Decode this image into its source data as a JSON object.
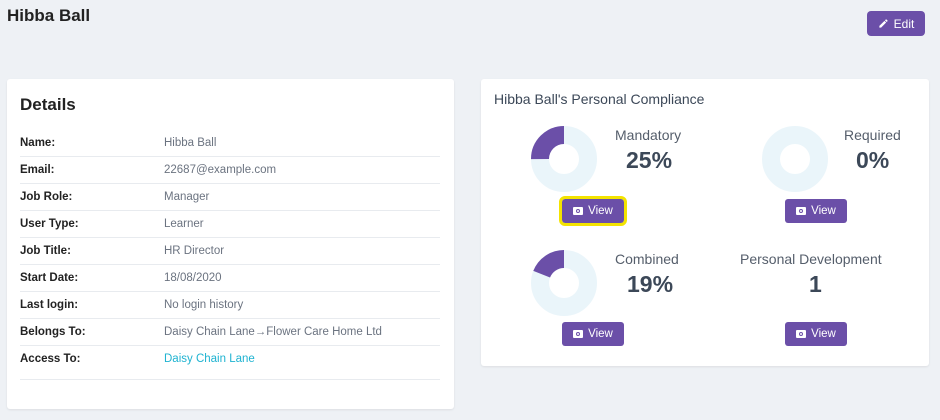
{
  "header": {
    "title": "Hibba Ball",
    "edit_label": "Edit"
  },
  "details": {
    "title": "Details",
    "rows": [
      {
        "label": "Name:",
        "value": "Hibba Ball"
      },
      {
        "label": "Email:",
        "value": "22687@example.com"
      },
      {
        "label": "Job Role:",
        "value": "Manager"
      },
      {
        "label": "User Type:",
        "value": "Learner"
      },
      {
        "label": "Job Title:",
        "value": "HR Director"
      },
      {
        "label": "Start Date:",
        "value": "18/08/2020"
      },
      {
        "label": "Last login:",
        "value": "No login history"
      },
      {
        "label": "Belongs To:",
        "value": "Daisy Chain Lane→Flower Care Home Ltd"
      },
      {
        "label": "Access To:",
        "value": "Daisy Chain Lane"
      }
    ]
  },
  "compliance": {
    "title": "Hibba Ball's Personal Compliance",
    "mandatory": {
      "label": "Mandatory",
      "value": "25%",
      "fraction": 0.25
    },
    "required": {
      "label": "Required",
      "value": "0%",
      "fraction": 0
    },
    "combined": {
      "label": "Combined",
      "value": "19%",
      "fraction": 0.19
    },
    "personal_development": {
      "label": "Personal Development",
      "value": "1"
    },
    "view_label": "View"
  },
  "colors": {
    "accent": "#6b4fa8",
    "donut_track": "#eaf5fa",
    "link": "#1fb3d1",
    "highlight": "#f3e300"
  }
}
